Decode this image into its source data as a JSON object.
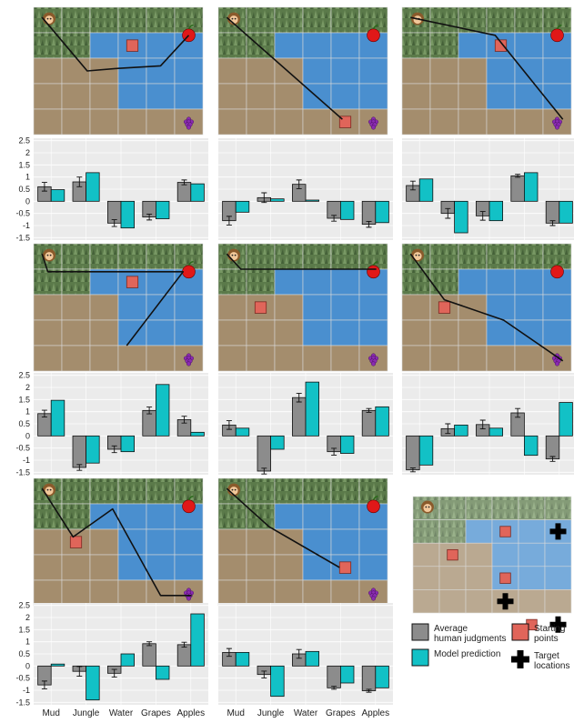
{
  "colors": {
    "human": "#8c8c8c",
    "model": "#12c1c6",
    "panel_bg": "#ebebeb",
    "grid": "#ffffff",
    "jungle": "#5b7a4a",
    "water": "#4a8fcf",
    "mud": "#a48d6d",
    "start": "#e0655a",
    "path": "#111111"
  },
  "icons": {
    "agent": "monkey-icon",
    "apple": "apple-icon",
    "grapes": "grapes-icon",
    "target": "plus-icon",
    "start": "square-icon"
  },
  "legend": {
    "human": "Average human judgments",
    "model": "Model prediction",
    "start": "Starting points",
    "target": "Target locations"
  },
  "chart_data": [
    {
      "type": "bar",
      "categories": [
        "Mud",
        "Jungle",
        "Water",
        "Grapes",
        "Apples"
      ],
      "ylim": [
        -1.6,
        2.6
      ],
      "yticks": [
        "-1.5",
        "-1",
        "-0.5",
        "0",
        "0.5",
        "1",
        "1.5",
        "2",
        "2.5"
      ],
      "series": [
        {
          "role": "human",
          "values": [
            0.6,
            0.8,
            -0.9,
            -0.65,
            0.78
          ],
          "errors": [
            0.18,
            0.2,
            0.14,
            0.12,
            0.1
          ]
        },
        {
          "role": "model",
          "values": [
            0.48,
            1.18,
            -1.1,
            -0.72,
            0.72
          ]
        }
      ]
    },
    {
      "type": "bar",
      "categories": [
        "Mud",
        "Jungle",
        "Water",
        "Grapes",
        "Apples"
      ],
      "ylim": [
        -1.6,
        2.6
      ],
      "yticks": [
        "-1.5",
        "-1",
        "-0.5",
        "0",
        "0.5",
        "1",
        "1.5",
        "2",
        "2.5"
      ],
      "series": [
        {
          "role": "human",
          "values": [
            -0.8,
            0.15,
            0.7,
            -0.7,
            -0.95
          ],
          "errors": [
            0.18,
            0.2,
            0.18,
            0.12,
            0.12
          ]
        },
        {
          "role": "model",
          "values": [
            -0.45,
            0.1,
            0.05,
            -0.75,
            -0.88
          ]
        }
      ]
    },
    {
      "type": "bar",
      "categories": [
        "Mud",
        "Jungle",
        "Water",
        "Grapes",
        "Apples"
      ],
      "ylim": [
        -1.6,
        2.6
      ],
      "yticks": [
        "-1.5",
        "-1",
        "-0.5",
        "0",
        "0.5",
        "1",
        "1.5",
        "2",
        "2.5"
      ],
      "series": [
        {
          "role": "human",
          "values": [
            0.65,
            -0.5,
            -0.6,
            1.05,
            -0.9
          ],
          "errors": [
            0.18,
            0.2,
            0.18,
            0.06,
            0.1
          ]
        },
        {
          "role": "model",
          "values": [
            0.92,
            -1.3,
            -0.8,
            1.18,
            -0.9
          ]
        }
      ]
    },
    {
      "type": "bar",
      "categories": [
        "Mud",
        "Jungle",
        "Water",
        "Grapes",
        "Apples"
      ],
      "ylim": [
        -1.6,
        2.6
      ],
      "yticks": [
        "-1.5",
        "-1",
        "-0.5",
        "0",
        "0.5",
        "1",
        "1.5",
        "2",
        "2.5"
      ],
      "series": [
        {
          "role": "human",
          "values": [
            0.92,
            -1.3,
            -0.55,
            1.05,
            0.67
          ],
          "errors": [
            0.14,
            0.12,
            0.14,
            0.14,
            0.14
          ]
        },
        {
          "role": "model",
          "values": [
            1.47,
            -1.12,
            -0.65,
            2.12,
            0.15
          ]
        }
      ]
    },
    {
      "type": "bar",
      "categories": [
        "Mud",
        "Jungle",
        "Water",
        "Grapes",
        "Apples"
      ],
      "ylim": [
        -1.6,
        2.6
      ],
      "yticks": [
        "-1.5",
        "-1",
        "-0.5",
        "0",
        "0.5",
        "1",
        "1.5",
        "2",
        "2.5"
      ],
      "series": [
        {
          "role": "human",
          "values": [
            0.45,
            -1.45,
            1.58,
            -0.65,
            1.05
          ],
          "errors": [
            0.18,
            0.12,
            0.18,
            0.14,
            0.08
          ]
        },
        {
          "role": "model",
          "values": [
            0.32,
            -0.55,
            2.22,
            -0.72,
            1.2
          ]
        }
      ]
    },
    {
      "type": "bar",
      "categories": [
        "Mud",
        "Jungle",
        "Water",
        "Grapes",
        "Apples"
      ],
      "ylim": [
        -1.6,
        2.6
      ],
      "yticks": [
        "-1.5",
        "-1",
        "-0.5",
        "0",
        "0.5",
        "1",
        "1.5",
        "2",
        "2.5"
      ],
      "series": [
        {
          "role": "human",
          "values": [
            -1.4,
            0.3,
            0.47,
            0.95,
            -0.95
          ],
          "errors": [
            0.08,
            0.2,
            0.18,
            0.18,
            0.1
          ]
        },
        {
          "role": "model",
          "values": [
            -1.2,
            0.45,
            0.32,
            -0.8,
            1.38
          ]
        }
      ]
    },
    {
      "type": "bar",
      "categories": [
        "Mud",
        "Jungle",
        "Water",
        "Grapes",
        "Apples"
      ],
      "ylim": [
        -1.6,
        2.6
      ],
      "yticks": [
        "-1.5",
        "-1",
        "-0.5",
        "0",
        "0.5",
        "1",
        "1.5",
        "2",
        "2.5"
      ],
      "series": [
        {
          "role": "human",
          "values": [
            -0.78,
            -0.22,
            -0.3,
            0.92,
            0.88
          ],
          "errors": [
            0.16,
            0.2,
            0.16,
            0.08,
            0.1
          ]
        },
        {
          "role": "model",
          "values": [
            0.08,
            -1.4,
            0.5,
            -0.55,
            2.15
          ]
        }
      ]
    },
    {
      "type": "bar",
      "categories": [
        "Mud",
        "Jungle",
        "Water",
        "Grapes",
        "Apples"
      ],
      "ylim": [
        -1.6,
        2.6
      ],
      "yticks": [
        "-1.5",
        "-1",
        "-0.5",
        "0",
        "0.5",
        "1",
        "1.5",
        "2",
        "2.5"
      ],
      "series": [
        {
          "role": "human",
          "values": [
            0.56,
            -0.35,
            0.5,
            -0.9,
            -1.02
          ],
          "errors": [
            0.16,
            0.14,
            0.18,
            0.06,
            0.06
          ]
        },
        {
          "role": "model",
          "values": [
            0.56,
            -1.25,
            0.6,
            -0.7,
            -0.9
          ]
        }
      ]
    }
  ],
  "maps": [
    {
      "start": [
        3,
        1
      ],
      "path": [
        [
          0.3,
          0.4
        ],
        [
          1.9,
          2.5
        ],
        [
          3,
          2.4
        ],
        [
          4.5,
          2.3
        ],
        [
          5.5,
          1.1
        ]
      ]
    },
    {
      "start": [
        4,
        4
      ],
      "path": [
        [
          0.3,
          0.4
        ],
        [
          4.4,
          4.4
        ]
      ]
    },
    {
      "start": [
        3,
        1
      ],
      "path": [
        [
          0.3,
          0.4
        ],
        [
          3.3,
          1.1
        ],
        [
          5.7,
          4.4
        ]
      ]
    },
    {
      "start": [
        3,
        1
      ],
      "path": [
        [
          0.3,
          0.4
        ],
        [
          0.5,
          1.1
        ],
        [
          3,
          1.1
        ],
        [
          5.3,
          1.1
        ],
        [
          3.3,
          4.0
        ]
      ]
    },
    {
      "start": [
        1,
        2
      ],
      "path": [
        [
          0.3,
          0.4
        ],
        [
          0.8,
          1.0
        ],
        [
          4.2,
          1.0
        ],
        [
          5.6,
          1.0
        ]
      ]
    },
    {
      "start": [
        1,
        2
      ],
      "path": [
        [
          0.3,
          0.4
        ],
        [
          1.5,
          2.2
        ],
        [
          3.6,
          3.0
        ],
        [
          5.7,
          4.6
        ]
      ]
    },
    {
      "start": [
        1,
        2
      ],
      "path": [
        [
          0.3,
          0.4
        ],
        [
          1.4,
          2.3
        ],
        [
          2.8,
          1.2
        ],
        [
          4.5,
          4.6
        ],
        [
          5.6,
          4.6
        ]
      ]
    },
    {
      "start": [
        4,
        3
      ],
      "path": [
        [
          0.3,
          0.4
        ],
        [
          1.8,
          1.9
        ],
        [
          4.3,
          3.5
        ]
      ]
    }
  ],
  "legend_map": {
    "starts": [
      [
        3,
        1
      ],
      [
        1,
        2
      ],
      [
        3,
        3
      ],
      [
        4,
        5
      ]
    ],
    "targets": [
      [
        5,
        1
      ],
      [
        3,
        4
      ],
      [
        5,
        5
      ]
    ]
  }
}
